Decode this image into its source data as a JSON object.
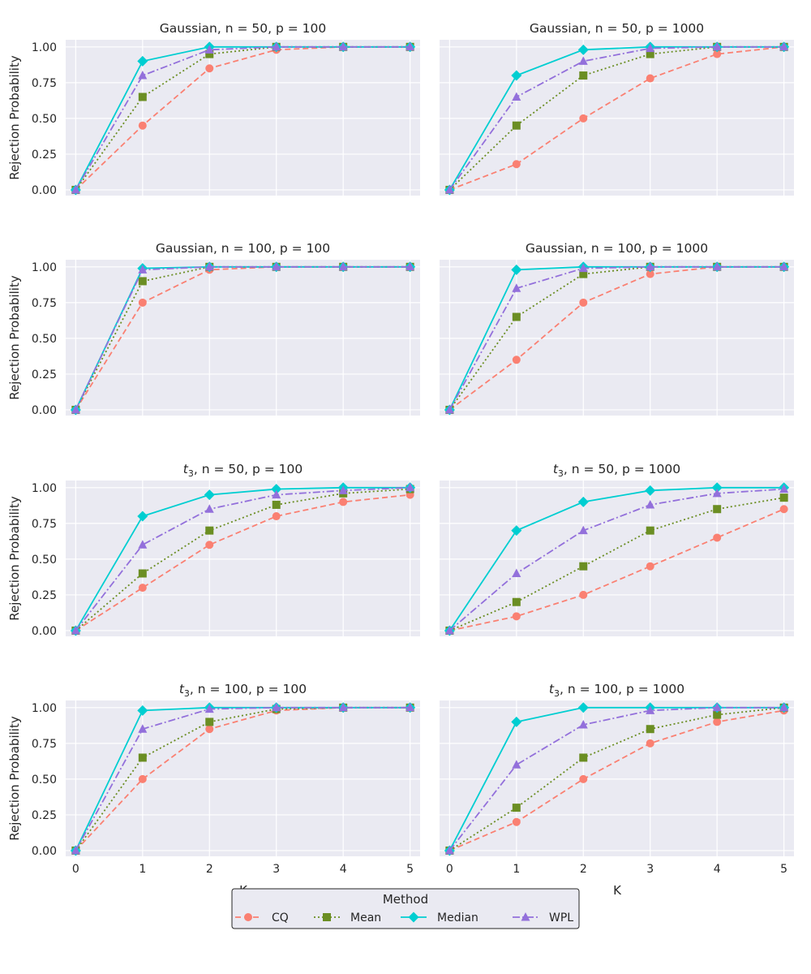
{
  "figure": {
    "ylabel": "Rejection Probability",
    "xlabel": "K"
  },
  "legend": {
    "title": "Method",
    "placement": "bottom-center",
    "entries": [
      "CQ",
      "Mean",
      "Median",
      "WPL"
    ]
  },
  "methods": [
    {
      "name": "CQ",
      "color": "#fa8072",
      "dash": "dashed",
      "marker": "circle"
    },
    {
      "name": "Mean",
      "color": "#6b8e23",
      "dash": "dotted",
      "marker": "square"
    },
    {
      "name": "Median",
      "color": "#00ced1",
      "dash": "solid",
      "marker": "diamond"
    },
    {
      "name": "WPL",
      "color": "#9370db",
      "dash": "dashdot",
      "marker": "triangle"
    }
  ],
  "chart_data": [
    {
      "type": "line",
      "title_prefix": "Gaussian",
      "title_suffix": ", n = 50, p = 100",
      "title_italic": false,
      "x": [
        0,
        1,
        2,
        3,
        4,
        5
      ],
      "xticks": [
        "0",
        "1",
        "2",
        "3",
        "4",
        "5"
      ],
      "yticks": [
        "0.00",
        "0.25",
        "0.50",
        "0.75",
        "1.00"
      ],
      "ylim": [
        -0.04,
        1.05
      ],
      "grid": true,
      "series": [
        {
          "name": "CQ",
          "values": [
            0,
            0.45,
            0.85,
            0.98,
            1.0,
            1.0
          ]
        },
        {
          "name": "Mean",
          "values": [
            0,
            0.65,
            0.95,
            1.0,
            1.0,
            1.0
          ]
        },
        {
          "name": "Median",
          "values": [
            0,
            0.9,
            1.0,
            1.0,
            1.0,
            1.0
          ]
        },
        {
          "name": "WPL",
          "values": [
            0,
            0.8,
            0.98,
            1.0,
            1.0,
            1.0
          ]
        }
      ]
    },
    {
      "type": "line",
      "title_prefix": "Gaussian",
      "title_suffix": ", n = 50, p = 1000",
      "title_italic": false,
      "x": [
        0,
        1,
        2,
        3,
        4,
        5
      ],
      "xticks": [
        "0",
        "1",
        "2",
        "3",
        "4",
        "5"
      ],
      "yticks": [
        "0.00",
        "0.25",
        "0.50",
        "0.75",
        "1.00"
      ],
      "ylim": [
        -0.04,
        1.05
      ],
      "grid": true,
      "series": [
        {
          "name": "CQ",
          "values": [
            0,
            0.18,
            0.5,
            0.78,
            0.95,
            1.0
          ]
        },
        {
          "name": "Mean",
          "values": [
            0,
            0.45,
            0.8,
            0.95,
            1.0,
            1.0
          ]
        },
        {
          "name": "Median",
          "values": [
            0,
            0.8,
            0.98,
            1.0,
            1.0,
            1.0
          ]
        },
        {
          "name": "WPL",
          "values": [
            0,
            0.65,
            0.9,
            0.99,
            1.0,
            1.0
          ]
        }
      ]
    },
    {
      "type": "line",
      "title_prefix": "Gaussian",
      "title_suffix": ", n = 100, p = 100",
      "title_italic": false,
      "x": [
        0,
        1,
        2,
        3,
        4,
        5
      ],
      "xticks": [
        "0",
        "1",
        "2",
        "3",
        "4",
        "5"
      ],
      "yticks": [
        "0.00",
        "0.25",
        "0.50",
        "0.75",
        "1.00"
      ],
      "ylim": [
        -0.04,
        1.05
      ],
      "grid": true,
      "series": [
        {
          "name": "CQ",
          "values": [
            0,
            0.75,
            0.98,
            1.0,
            1.0,
            1.0
          ]
        },
        {
          "name": "Mean",
          "values": [
            0,
            0.9,
            1.0,
            1.0,
            1.0,
            1.0
          ]
        },
        {
          "name": "Median",
          "values": [
            0,
            0.99,
            1.0,
            1.0,
            1.0,
            1.0
          ]
        },
        {
          "name": "WPL",
          "values": [
            0,
            0.98,
            1.0,
            1.0,
            1.0,
            1.0
          ]
        }
      ]
    },
    {
      "type": "line",
      "title_prefix": "Gaussian",
      "title_suffix": ", n = 100, p = 1000",
      "title_italic": false,
      "x": [
        0,
        1,
        2,
        3,
        4,
        5
      ],
      "xticks": [
        "0",
        "1",
        "2",
        "3",
        "4",
        "5"
      ],
      "yticks": [
        "0.00",
        "0.25",
        "0.50",
        "0.75",
        "1.00"
      ],
      "ylim": [
        -0.04,
        1.05
      ],
      "grid": true,
      "series": [
        {
          "name": "CQ",
          "values": [
            0,
            0.35,
            0.75,
            0.95,
            1.0,
            1.0
          ]
        },
        {
          "name": "Mean",
          "values": [
            0,
            0.65,
            0.95,
            1.0,
            1.0,
            1.0
          ]
        },
        {
          "name": "Median",
          "values": [
            0,
            0.98,
            1.0,
            1.0,
            1.0,
            1.0
          ]
        },
        {
          "name": "WPL",
          "values": [
            0,
            0.85,
            0.99,
            1.0,
            1.0,
            1.0
          ]
        }
      ]
    },
    {
      "type": "line",
      "title_prefix": "t",
      "title_sub": "3",
      "title_suffix": ", n = 50, p = 100",
      "title_italic": true,
      "x": [
        0,
        1,
        2,
        3,
        4,
        5
      ],
      "xticks": [
        "0",
        "1",
        "2",
        "3",
        "4",
        "5"
      ],
      "yticks": [
        "0.00",
        "0.25",
        "0.50",
        "0.75",
        "1.00"
      ],
      "ylim": [
        -0.04,
        1.05
      ],
      "grid": true,
      "series": [
        {
          "name": "CQ",
          "values": [
            0,
            0.3,
            0.6,
            0.8,
            0.9,
            0.95
          ]
        },
        {
          "name": "Mean",
          "values": [
            0,
            0.4,
            0.7,
            0.88,
            0.96,
            0.99
          ]
        },
        {
          "name": "Median",
          "values": [
            0,
            0.8,
            0.95,
            0.99,
            1.0,
            1.0
          ]
        },
        {
          "name": "WPL",
          "values": [
            0,
            0.6,
            0.85,
            0.95,
            0.98,
            1.0
          ]
        }
      ]
    },
    {
      "type": "line",
      "title_prefix": "t",
      "title_sub": "3",
      "title_suffix": ", n = 50, p = 1000",
      "title_italic": true,
      "x": [
        0,
        1,
        2,
        3,
        4,
        5
      ],
      "xticks": [
        "0",
        "1",
        "2",
        "3",
        "4",
        "5"
      ],
      "yticks": [
        "0.00",
        "0.25",
        "0.50",
        "0.75",
        "1.00"
      ],
      "ylim": [
        -0.04,
        1.05
      ],
      "grid": true,
      "series": [
        {
          "name": "CQ",
          "values": [
            0,
            0.1,
            0.25,
            0.45,
            0.65,
            0.85
          ]
        },
        {
          "name": "Mean",
          "values": [
            0,
            0.2,
            0.45,
            0.7,
            0.85,
            0.93
          ]
        },
        {
          "name": "Median",
          "values": [
            0,
            0.7,
            0.9,
            0.98,
            1.0,
            1.0
          ]
        },
        {
          "name": "WPL",
          "values": [
            0,
            0.4,
            0.7,
            0.88,
            0.96,
            0.99
          ]
        }
      ]
    },
    {
      "type": "line",
      "title_prefix": "t",
      "title_sub": "3",
      "title_suffix": ", n = 100, p = 100",
      "title_italic": true,
      "x": [
        0,
        1,
        2,
        3,
        4,
        5
      ],
      "xticks": [
        "0",
        "1",
        "2",
        "3",
        "4",
        "5"
      ],
      "yticks": [
        "0.00",
        "0.25",
        "0.50",
        "0.75",
        "1.00"
      ],
      "ylim": [
        -0.04,
        1.05
      ],
      "grid": true,
      "series": [
        {
          "name": "CQ",
          "values": [
            0,
            0.5,
            0.85,
            0.98,
            1.0,
            1.0
          ]
        },
        {
          "name": "Mean",
          "values": [
            0,
            0.65,
            0.9,
            0.99,
            1.0,
            1.0
          ]
        },
        {
          "name": "Median",
          "values": [
            0,
            0.98,
            1.0,
            1.0,
            1.0,
            1.0
          ]
        },
        {
          "name": "WPL",
          "values": [
            0,
            0.85,
            0.99,
            1.0,
            1.0,
            1.0
          ]
        }
      ]
    },
    {
      "type": "line",
      "title_prefix": "t",
      "title_sub": "3",
      "title_suffix": ", n = 100, p = 1000",
      "title_italic": true,
      "x": [
        0,
        1,
        2,
        3,
        4,
        5
      ],
      "xticks": [
        "0",
        "1",
        "2",
        "3",
        "4",
        "5"
      ],
      "yticks": [
        "0.00",
        "0.25",
        "0.50",
        "0.75",
        "1.00"
      ],
      "ylim": [
        -0.04,
        1.05
      ],
      "grid": true,
      "series": [
        {
          "name": "CQ",
          "values": [
            0,
            0.2,
            0.5,
            0.75,
            0.9,
            0.98
          ]
        },
        {
          "name": "Mean",
          "values": [
            0,
            0.3,
            0.65,
            0.85,
            0.95,
            1.0
          ]
        },
        {
          "name": "Median",
          "values": [
            0,
            0.9,
            1.0,
            1.0,
            1.0,
            1.0
          ]
        },
        {
          "name": "WPL",
          "values": [
            0,
            0.6,
            0.88,
            0.98,
            1.0,
            1.0
          ]
        }
      ]
    }
  ]
}
